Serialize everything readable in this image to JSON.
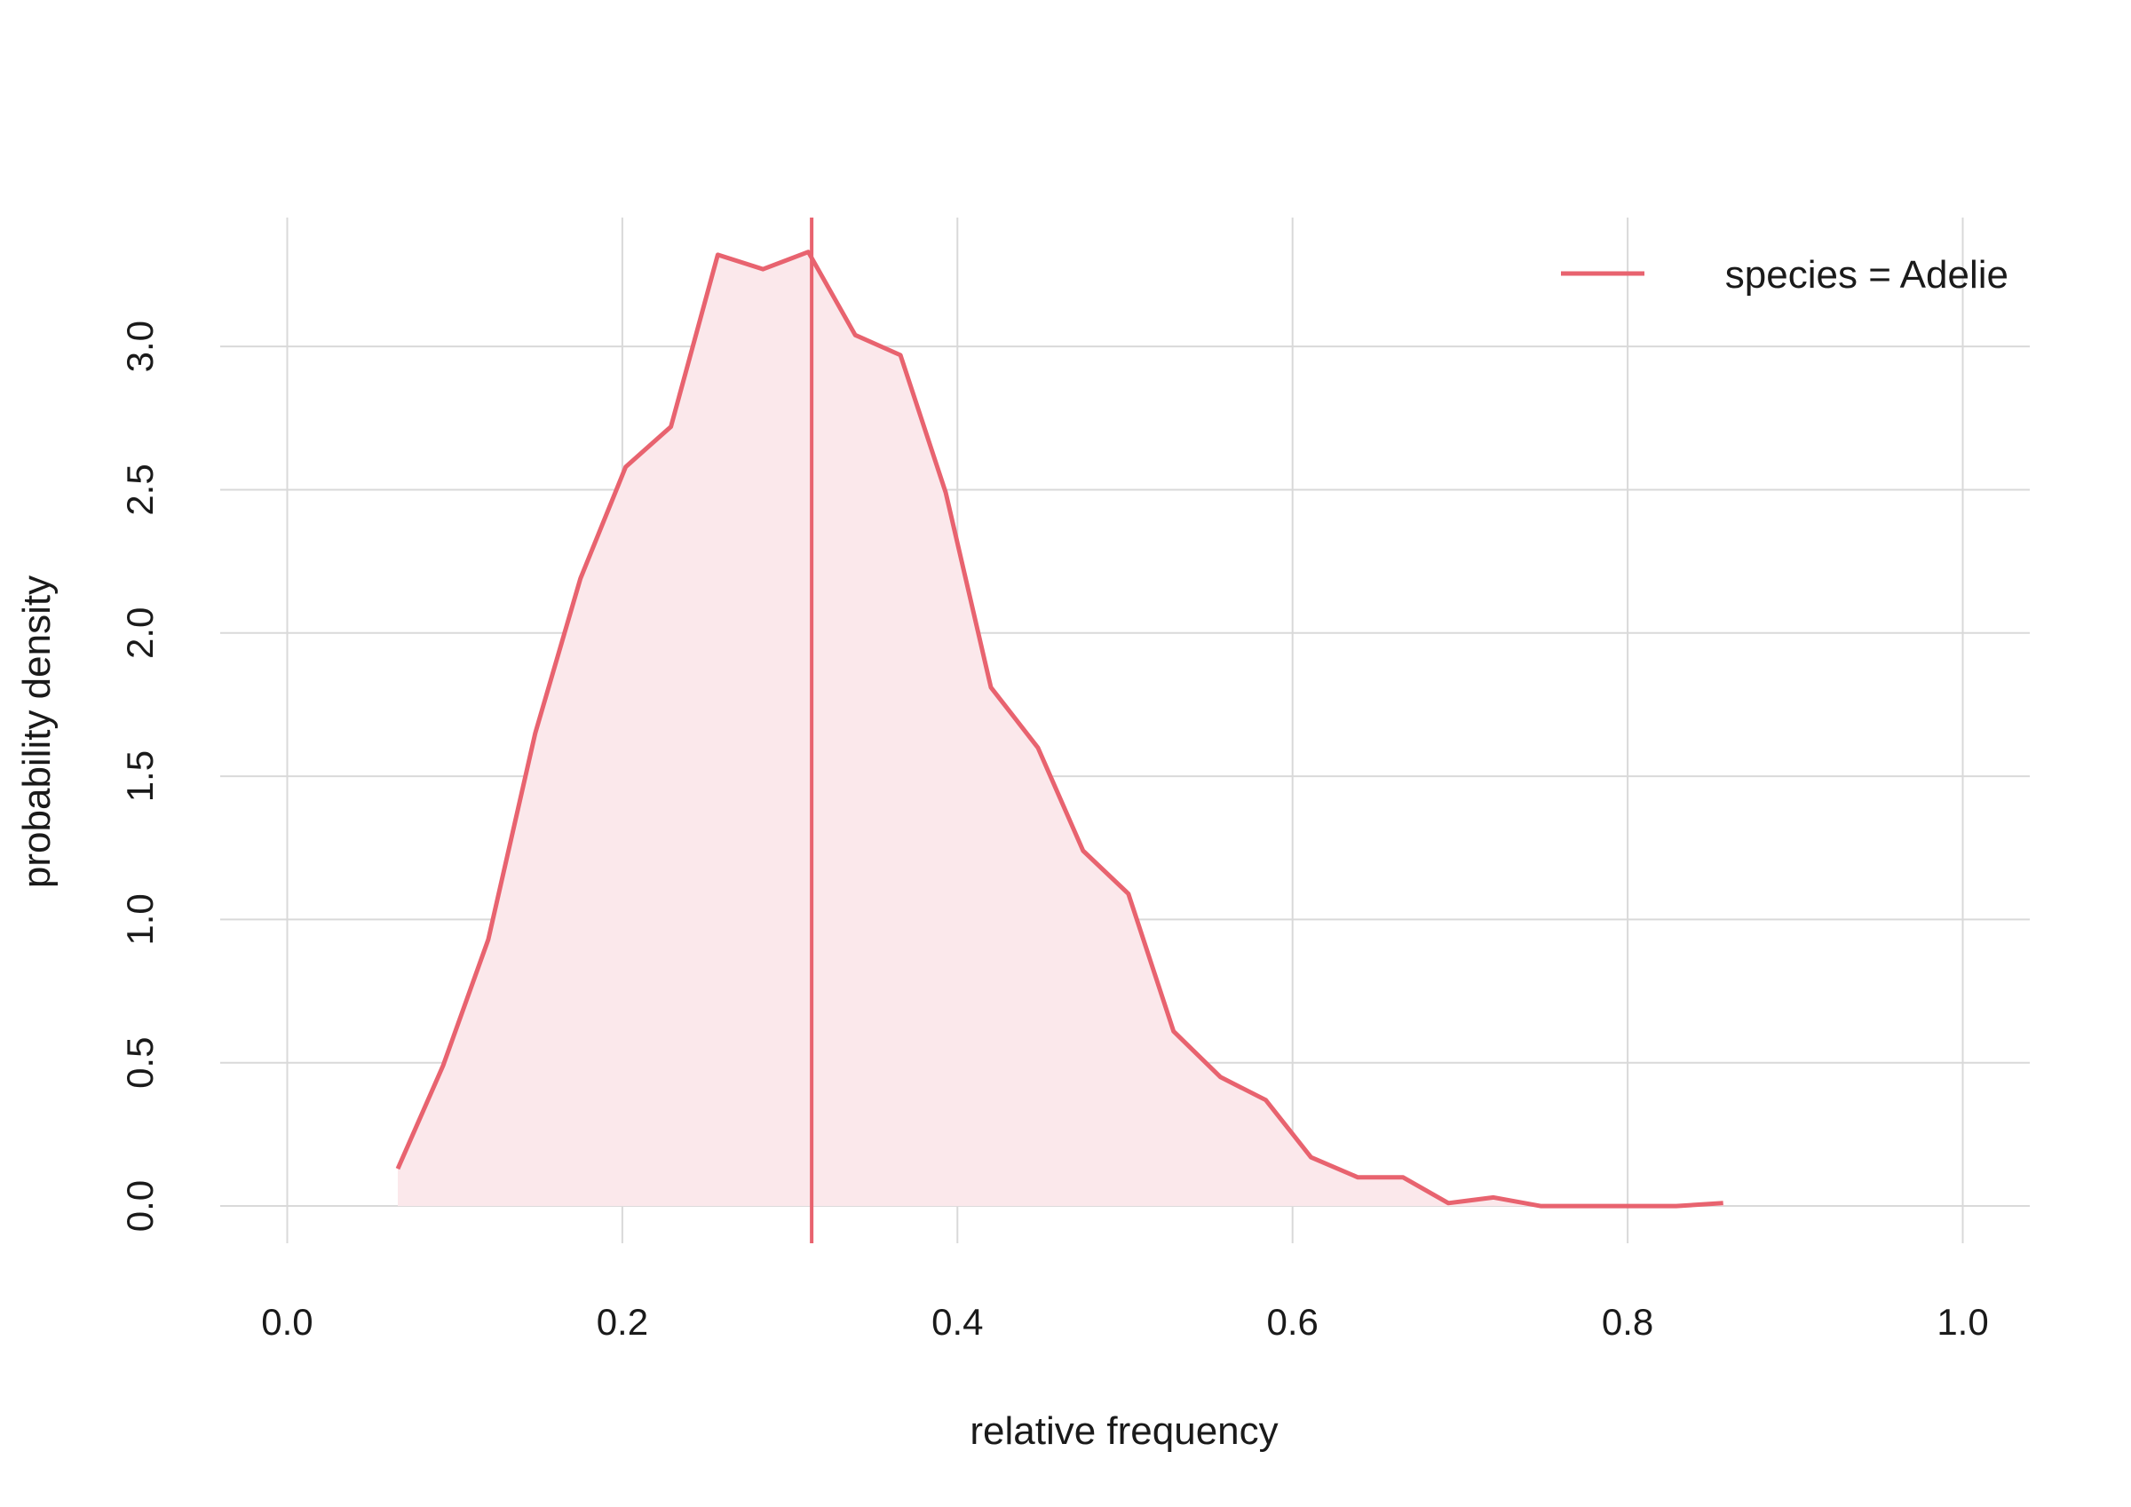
{
  "chart_data": {
    "type": "line",
    "title": "",
    "xlabel": "relative frequency",
    "ylabel": "probability density",
    "xlim": [
      -0.04,
      1.04
    ],
    "ylim": [
      -0.13,
      3.45
    ],
    "x_ticks": [
      0.0,
      0.2,
      0.4,
      0.6,
      0.8,
      1.0
    ],
    "x_tick_labels": [
      "0.0",
      "0.2",
      "0.4",
      "0.6",
      "0.8",
      "1.0"
    ],
    "y_ticks": [
      0.0,
      0.5,
      1.0,
      1.5,
      2.0,
      2.5,
      3.0
    ],
    "y_tick_labels": [
      "0.0",
      "0.5",
      "1.0",
      "1.5",
      "2.0",
      "2.5",
      "3.0"
    ],
    "grid": true,
    "legend": {
      "position": "top-right",
      "entries": [
        "species = Adelie"
      ]
    },
    "series": [
      {
        "name": "species = Adelie",
        "color": "#e8636f",
        "fill_color": "#fbe8eb",
        "x": [
          0.066,
          0.093,
          0.12,
          0.148,
          0.175,
          0.202,
          0.229,
          0.257,
          0.284,
          0.311,
          0.339,
          0.366,
          0.393,
          0.42,
          0.448,
          0.475,
          0.502,
          0.529,
          0.557,
          0.584,
          0.611,
          0.639,
          0.666,
          0.693,
          0.72,
          0.748,
          0.775,
          0.802,
          0.829,
          0.857
        ],
        "y": [
          0.13,
          0.49,
          0.93,
          1.65,
          2.19,
          2.58,
          2.72,
          3.32,
          3.27,
          3.33,
          3.04,
          2.97,
          2.49,
          1.81,
          1.6,
          1.24,
          1.09,
          0.61,
          0.45,
          0.37,
          0.17,
          0.1,
          0.1,
          0.01,
          0.03,
          0.0,
          0.0,
          0.0,
          0.0,
          0.01
        ]
      }
    ],
    "reference_line": {
      "orientation": "vertical",
      "x": 0.313,
      "color": "#e8636f"
    }
  }
}
